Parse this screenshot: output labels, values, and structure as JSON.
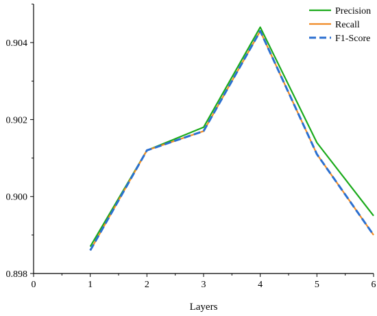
{
  "chart_data": {
    "type": "line",
    "title": "",
    "xlabel": "Layers",
    "ylabel": "",
    "xlim": [
      0,
      6
    ],
    "ylim": [
      0.898,
      0.905
    ],
    "x_ticks": [
      "0",
      "1",
      "2",
      "3",
      "4",
      "5",
      "6"
    ],
    "y_ticks": [
      "0.898",
      "0.900",
      "0.902",
      "0.904"
    ],
    "grid": false,
    "legend_position": "top-right",
    "x": [
      1,
      2,
      3,
      4,
      5,
      6
    ],
    "series": [
      {
        "name": "Precision",
        "color": "#1aaa1a",
        "dash": "solid",
        "values": [
          0.8987,
          0.9012,
          0.9018,
          0.9044,
          0.9014,
          0.8995
        ]
      },
      {
        "name": "Recall",
        "color": "#f08a24",
        "dash": "solid",
        "values": [
          0.8986,
          0.9012,
          0.9017,
          0.9043,
          0.9011,
          0.899
        ]
      },
      {
        "name": "F1-Score",
        "color": "#2b6fd0",
        "dash": "dashed",
        "values": [
          0.8986,
          0.9012,
          0.9017,
          0.9043,
          0.9011,
          0.899
        ]
      }
    ]
  }
}
